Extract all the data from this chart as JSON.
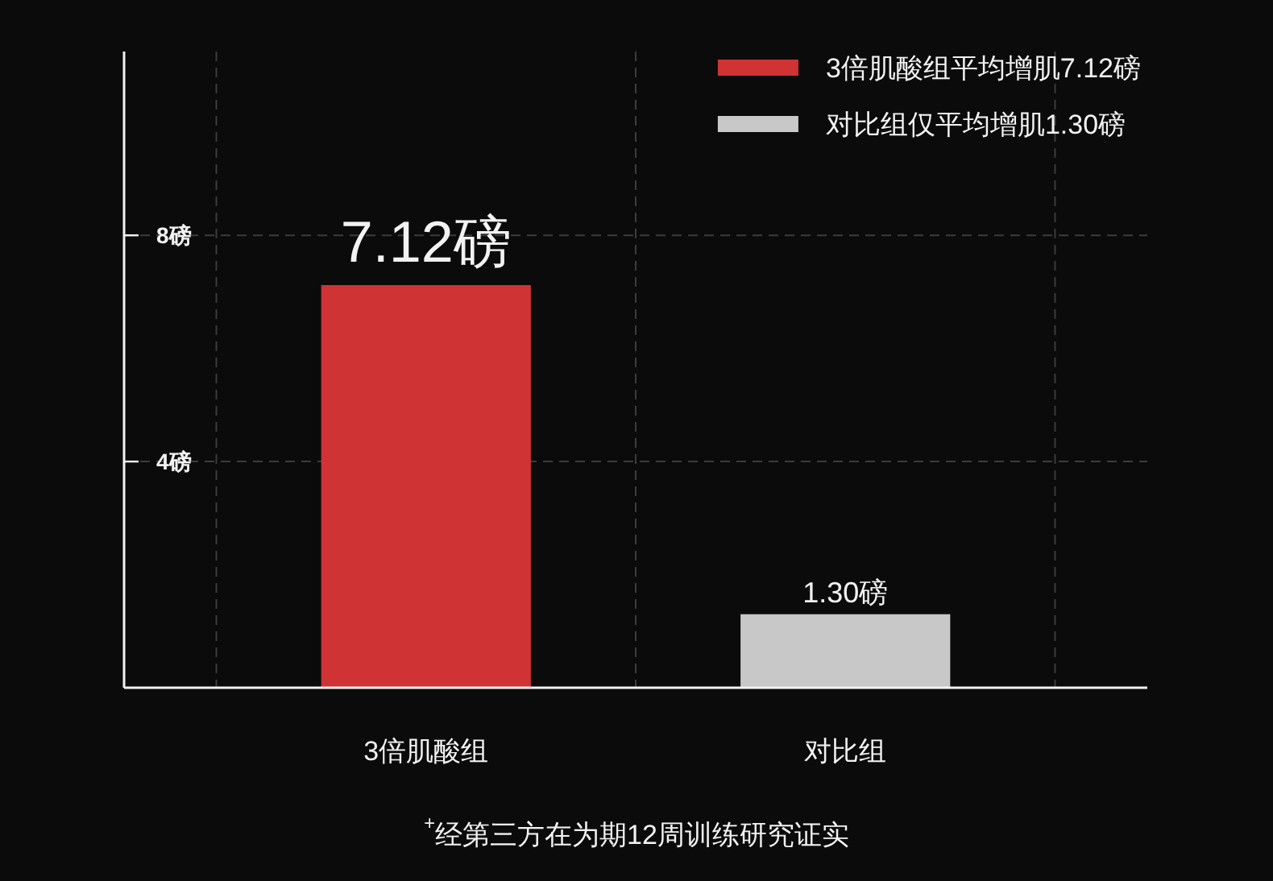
{
  "chart_data": {
    "type": "bar",
    "categories": [
      "3倍肌酸组",
      "对比组"
    ],
    "series": [
      {
        "name": "3倍肌酸组平均增肌7.12磅",
        "color": "#d03333",
        "values": [
          7.12,
          null
        ],
        "value_labels": [
          "7.12磅",
          null
        ]
      },
      {
        "name": "对比组仅平均增肌1.30磅",
        "color": "#c8c8c8",
        "values": [
          null,
          1.3
        ],
        "value_labels": [
          null,
          "1.30磅"
        ]
      }
    ],
    "ylim": [
      0,
      11.25
    ],
    "yticks": [
      {
        "value": 4,
        "label": "4磅"
      },
      {
        "value": 8,
        "label": "8磅"
      }
    ],
    "grid": true,
    "legend": "top right",
    "annotations": [
      "$^{+}$经第三方在为期12周训练研究证实"
    ]
  }
}
